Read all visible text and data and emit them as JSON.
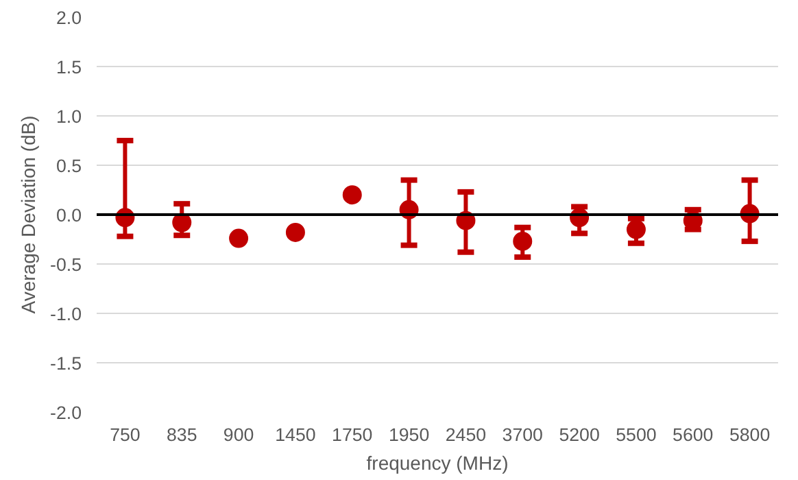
{
  "chart_data": {
    "type": "scatter",
    "xlabel": "frequency (MHz)",
    "ylabel": "Average Deviation (dB)",
    "categories": [
      "750",
      "835",
      "900",
      "1450",
      "1750",
      "1950",
      "2450",
      "3700",
      "5200",
      "5500",
      "5600",
      "5800"
    ],
    "series": [
      {
        "color": "#c00000",
        "values": [
          -0.03,
          -0.08,
          -0.24,
          -0.18,
          0.2,
          0.05,
          -0.06,
          -0.27,
          -0.03,
          -0.15,
          -0.06,
          0.01
        ],
        "errors": [
          [
            -0.22,
            0.75
          ],
          [
            -0.21,
            0.11
          ],
          null,
          null,
          null,
          [
            -0.31,
            0.35
          ],
          [
            -0.38,
            0.23
          ],
          [
            -0.43,
            -0.13
          ],
          [
            -0.19,
            0.08
          ],
          [
            -0.29,
            -0.04
          ],
          [
            -0.15,
            0.05
          ],
          [
            -0.27,
            0.35
          ]
        ]
      }
    ],
    "ylim": [
      -2.0,
      2.0
    ],
    "yticks": [
      {
        "value": -2,
        "label": "-2.0"
      },
      {
        "value": -1.5,
        "label": "-1.5"
      },
      {
        "value": -1,
        "label": "-1.0"
      },
      {
        "value": -0.5,
        "label": "-0.5"
      },
      {
        "value": 0,
        "label": "0.0"
      },
      {
        "value": 0.5,
        "label": "0.5"
      },
      {
        "value": 1,
        "label": "1.0"
      },
      {
        "value": 1.5,
        "label": "1.5"
      },
      {
        "value": 2,
        "label": "2.0"
      }
    ],
    "ref_lines": [
      {
        "axis": "y",
        "value": 0,
        "color": "#000000"
      }
    ],
    "grid": "y",
    "marker": "circle"
  }
}
